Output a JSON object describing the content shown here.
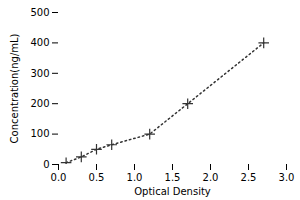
{
  "chart_data": {
    "type": "line",
    "xlabel": "Optical Density",
    "ylabel": "Concentration(ng/mL)",
    "x": [
      0.1,
      0.3,
      0.5,
      0.7,
      1.2,
      1.7,
      2.7
    ],
    "values": [
      6,
      25,
      50,
      65,
      100,
      200,
      400
    ],
    "color": "#333333",
    "marker": "plus",
    "line_style": "dotted",
    "xlim": [
      0,
      3
    ],
    "ylim": [
      0,
      500
    ],
    "xticks": [
      {
        "value": 0,
        "label": "0.0"
      },
      0.5,
      {
        "value": 1,
        "label": "1.0"
      },
      1.5,
      {
        "value": 2,
        "label": "2.0"
      },
      2.5,
      {
        "value": 3,
        "label": "3.0"
      }
    ],
    "yticks": [
      0,
      100,
      200,
      300,
      400,
      500
    ],
    "grid": false
  }
}
